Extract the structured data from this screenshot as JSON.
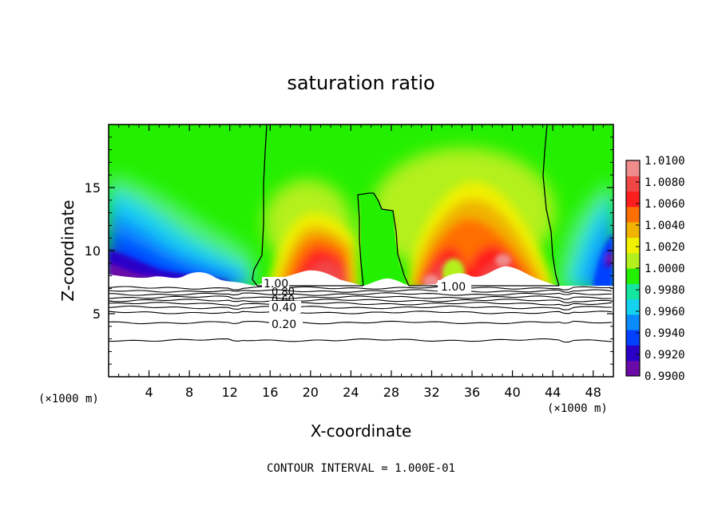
{
  "chart_data": {
    "type": "heatmap",
    "title": "saturation ratio",
    "xlabel": "X-coordinate",
    "ylabel": "Z-coordinate",
    "x_unit_note": "(×1000 m)",
    "y_unit_note": "(×1000 m)",
    "xlim": [
      0,
      50
    ],
    "ylim": [
      0,
      20
    ],
    "x_ticks": [
      4,
      8,
      12,
      16,
      20,
      24,
      28,
      32,
      36,
      40,
      44,
      48
    ],
    "y_ticks": [
      5,
      10,
      15
    ],
    "colorbar": {
      "min": 0.99,
      "max": 1.01,
      "tick_labels": [
        "1.0100",
        "1.0080",
        "1.0060",
        "1.0040",
        "1.0020",
        "1.0000",
        "0.9980",
        "0.9960",
        "0.9940",
        "0.9920",
        "0.9900"
      ],
      "colors": [
        "#6a0aa8",
        "#2a00c8",
        "#0040ff",
        "#0a8cff",
        "#14d2f0",
        "#14e6a0",
        "#23f000",
        "#b4f01e",
        "#f0f000",
        "#f0b400",
        "#ff6e00",
        "#ff1e1e",
        "#f04646",
        "#f08c8c"
      ]
    },
    "contour_labels": [
      "1.00",
      "0.80",
      "0.60",
      "0.40",
      "0.20",
      "1.00"
    ],
    "lower_contour_levels_z": [
      7.05,
      6.8,
      6.55,
      6.3,
      6.05,
      5.8,
      5.5,
      5.1,
      4.3,
      2.9
    ],
    "footer": "CONTOUR INTERVAL = 1.000E-01"
  }
}
